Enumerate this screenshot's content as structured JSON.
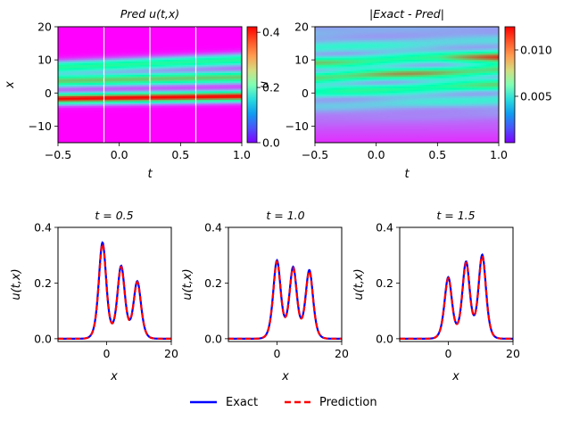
{
  "colors": {
    "exact": "#0000ff",
    "prediction": "#ff0000",
    "colormap": "rainbow"
  },
  "chart_data": [
    {
      "type": "heatmap",
      "title": "Pred u(t,x)",
      "xlabel": "t",
      "ylabel": "x",
      "xlim": [
        -0.5,
        1.0
      ],
      "ylim": [
        -15,
        20
      ],
      "xticks": [
        "-0.5",
        "0.0",
        "0.5",
        "1.0"
      ],
      "yticks": [
        "-10",
        "0",
        "10",
        "20"
      ],
      "colorbar": {
        "range": [
          0.0,
          0.42
        ],
        "ticks": [
          "0.0",
          "0.2",
          "0.4"
        ],
        "label": "u"
      },
      "vertical_lines_t": [
        -0.125,
        0.25,
        0.625
      ],
      "ridges": [
        {
          "x0": -1.5,
          "slope": 0.5,
          "peak": 0.42,
          "width": 1.6
        },
        {
          "x0": 4.0,
          "slope": 0.75,
          "peak": 0.3,
          "width": 1.8
        },
        {
          "x0": 8.5,
          "slope": 1.5,
          "peak": 0.24,
          "width": 1.8
        }
      ]
    },
    {
      "type": "heatmap",
      "title": "|Exact - Pred|",
      "xlabel": "t",
      "xlim": [
        -0.5,
        1.0
      ],
      "ylim": [
        -15,
        20
      ],
      "xticks": [
        "-0.5",
        "0.0",
        "0.5",
        "1.0"
      ],
      "yticks": [
        "-10",
        "0",
        "10",
        "20"
      ],
      "colorbar": {
        "range": [
          0.0,
          0.0125
        ],
        "ticks": [
          "0.005",
          "0.010"
        ]
      }
    },
    {
      "type": "line",
      "title": "t = 0.5",
      "xlabel": "x",
      "ylabel": "u(t,x)",
      "xlim": [
        -15,
        20
      ],
      "ylim": [
        -0.01,
        0.4
      ],
      "xticks": [
        "0",
        "20"
      ],
      "yticks": [
        "0.0",
        "0.2",
        "0.4"
      ],
      "peaks": [
        [
          -1.25,
          0.345
        ],
        [
          4.5,
          0.26
        ],
        [
          9.5,
          0.205
        ]
      ],
      "series": [
        {
          "name": "Exact",
          "x": [
            -15,
            -10,
            -5,
            -3,
            -1.25,
            0.5,
            2,
            3,
            4.5,
            6,
            7,
            8,
            9.5,
            11,
            13,
            15,
            20
          ],
          "values": [
            0.0,
            0.0,
            0.005,
            0.09,
            0.355,
            0.21,
            0.15,
            0.21,
            0.265,
            0.18,
            0.155,
            0.18,
            0.21,
            0.14,
            0.03,
            0.003,
            0.0
          ]
        },
        {
          "name": "Prediction",
          "x": [
            -15,
            -10,
            -5,
            -3,
            -1.25,
            0.5,
            2,
            3,
            4.5,
            6,
            7,
            8,
            9.5,
            11,
            13,
            15,
            20
          ],
          "values": [
            0.0,
            0.0,
            0.005,
            0.09,
            0.35,
            0.21,
            0.15,
            0.21,
            0.26,
            0.18,
            0.155,
            0.18,
            0.205,
            0.14,
            0.03,
            0.003,
            0.0
          ]
        }
      ]
    },
    {
      "type": "line",
      "title": "t = 1.0",
      "xlabel": "x",
      "ylabel": "u(t,x)",
      "xlim": [
        -15,
        20
      ],
      "ylim": [
        -0.01,
        0.4
      ],
      "xticks": [
        "0",
        "20"
      ],
      "yticks": [
        "0.0",
        "0.2",
        "0.4"
      ],
      "peaks": [
        [
          0.0,
          0.28
        ],
        [
          5.0,
          0.255
        ],
        [
          10.0,
          0.245
        ]
      ],
      "series": [
        {
          "name": "Exact",
          "x": [
            -15,
            -10,
            -5,
            -2,
            0,
            2.5,
            5,
            7.5,
            10,
            12,
            14,
            16,
            20
          ],
          "values": [
            0.0,
            0.0,
            0.003,
            0.12,
            0.285,
            0.19,
            0.26,
            0.19,
            0.25,
            0.15,
            0.03,
            0.004,
            0.0
          ]
        },
        {
          "name": "Prediction",
          "x": [
            -15,
            -10,
            -5,
            -2,
            0,
            2.5,
            5,
            7.5,
            10,
            12,
            14,
            16,
            20
          ],
          "values": [
            0.0,
            0.0,
            0.003,
            0.12,
            0.28,
            0.19,
            0.255,
            0.19,
            0.245,
            0.15,
            0.03,
            0.004,
            0.0
          ]
        }
      ]
    },
    {
      "type": "line",
      "title": "t = 1.5",
      "xlabel": "x",
      "ylabel": "u(t,x)",
      "xlim": [
        -15,
        20
      ],
      "ylim": [
        -0.01,
        0.4
      ],
      "xticks": [
        "0",
        "20"
      ],
      "yticks": [
        "0.0",
        "0.2",
        "0.4"
      ],
      "peaks": [
        [
          0.0,
          0.22
        ],
        [
          5.5,
          0.275
        ],
        [
          10.5,
          0.3
        ]
      ],
      "series": [
        {
          "name": "Exact",
          "x": [
            -15,
            -10,
            -5,
            -2,
            0,
            2.5,
            5.5,
            8,
            10.5,
            12.5,
            14.5,
            17,
            20
          ],
          "values": [
            0.0,
            0.0,
            0.002,
            0.08,
            0.225,
            0.175,
            0.28,
            0.19,
            0.305,
            0.14,
            0.02,
            0.002,
            0.0
          ]
        },
        {
          "name": "Prediction",
          "x": [
            -15,
            -10,
            -5,
            -2,
            0,
            2.5,
            5.5,
            8,
            10.5,
            12.5,
            14.5,
            17,
            20
          ],
          "values": [
            0.0,
            0.0,
            0.002,
            0.08,
            0.22,
            0.175,
            0.275,
            0.19,
            0.3,
            0.14,
            0.02,
            0.002,
            0.0
          ]
        }
      ]
    }
  ],
  "legend": {
    "exact_label": "Exact",
    "prediction_label": "Prediction"
  }
}
